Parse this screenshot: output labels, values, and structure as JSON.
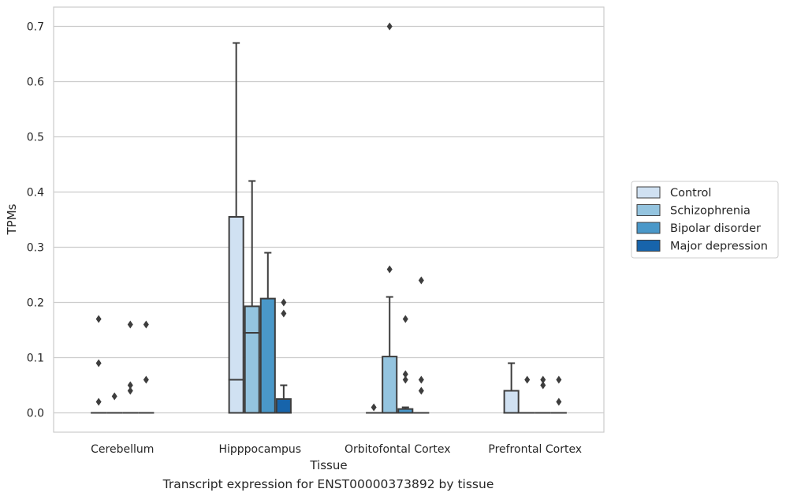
{
  "caption": "Transcript expression for ENST00000373892 by tissue",
  "chart_data": {
    "type": "box",
    "title": "",
    "xlabel": "Tissue",
    "ylabel": "TPMs",
    "ylim": [
      -0.035,
      0.735
    ],
    "yticks": [
      0.0,
      0.1,
      0.2,
      0.3,
      0.4,
      0.5,
      0.6,
      0.7
    ],
    "ytick_labels": [
      "0.0",
      "0.1",
      "0.2",
      "0.3",
      "0.4",
      "0.5",
      "0.6",
      "0.7"
    ],
    "grid": "horizontal",
    "legend_position": "right",
    "categories": [
      "Cerebellum",
      "Hipppocampus",
      "Orbitofontal Cortex",
      "Prefrontal Cortex"
    ],
    "series": [
      {
        "name": "Control",
        "color": "#d0e1f2",
        "boxes": [
          {
            "q1": 0,
            "median": 0,
            "q3": 0,
            "whislo": 0,
            "whishi": 0,
            "fliers": [
              0.17,
              0.09,
              0.02
            ]
          },
          {
            "q1": 0,
            "median": 0.06,
            "q3": 0.355,
            "whislo": 0,
            "whishi": 0.67,
            "fliers": []
          },
          {
            "q1": 0,
            "median": 0,
            "q3": 0,
            "whislo": 0,
            "whishi": 0,
            "fliers": [
              0.01
            ]
          },
          {
            "q1": 0,
            "median": 0,
            "q3": 0.04,
            "whislo": 0,
            "whishi": 0.09,
            "fliers": []
          }
        ]
      },
      {
        "name": "Schizophrenia",
        "color": "#94c4df",
        "boxes": [
          {
            "q1": 0,
            "median": 0,
            "q3": 0,
            "whislo": 0,
            "whishi": 0,
            "fliers": [
              0.03
            ]
          },
          {
            "q1": 0,
            "median": 0.145,
            "q3": 0.193,
            "whislo": 0,
            "whishi": 0.42,
            "fliers": []
          },
          {
            "q1": 0,
            "median": 0,
            "q3": 0.102,
            "whislo": 0,
            "whishi": 0.21,
            "fliers": [
              0.26,
              0.7
            ]
          },
          {
            "q1": 0,
            "median": 0,
            "q3": 0,
            "whislo": 0,
            "whishi": 0,
            "fliers": [
              0.06
            ]
          }
        ]
      },
      {
        "name": "Bipolar disorder",
        "color": "#4a98c9",
        "boxes": [
          {
            "q1": 0,
            "median": 0,
            "q3": 0,
            "whislo": 0,
            "whishi": 0,
            "fliers": [
              0.16,
              0.05,
              0.04
            ]
          },
          {
            "q1": 0,
            "median": 0,
            "q3": 0.207,
            "whislo": 0,
            "whishi": 0.29,
            "fliers": []
          },
          {
            "q1": 0,
            "median": 0,
            "q3": 0.007,
            "whislo": 0,
            "whishi": 0.01,
            "fliers": [
              0.17,
              0.07,
              0.06
            ]
          },
          {
            "q1": 0,
            "median": 0,
            "q3": 0,
            "whislo": 0,
            "whishi": 0,
            "fliers": [
              0.06,
              0.05
            ]
          }
        ]
      },
      {
        "name": "Major depression",
        "color": "#1764ab",
        "boxes": [
          {
            "q1": 0,
            "median": 0,
            "q3": 0,
            "whislo": 0,
            "whishi": 0,
            "fliers": [
              0.16,
              0.06
            ]
          },
          {
            "q1": 0,
            "median": 0,
            "q3": 0.025,
            "whislo": 0,
            "whishi": 0.05,
            "fliers": [
              0.2,
              0.18
            ]
          },
          {
            "q1": 0,
            "median": 0,
            "q3": 0,
            "whislo": 0,
            "whishi": 0,
            "fliers": [
              0.24,
              0.06,
              0.04
            ]
          },
          {
            "q1": 0,
            "median": 0,
            "q3": 0,
            "whislo": 0,
            "whishi": 0,
            "fliers": [
              0.06,
              0.02
            ]
          }
        ]
      }
    ]
  }
}
